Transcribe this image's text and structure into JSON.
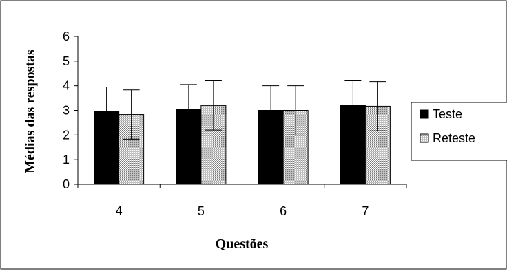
{
  "chart_data": {
    "type": "bar",
    "xlabel": "Questões",
    "ylabel": "Médias das respostas",
    "ylim": [
      0,
      6
    ],
    "y_ticks": [
      "0",
      "1",
      "2",
      "3",
      "4",
      "5",
      "6"
    ],
    "categories": [
      "4",
      "5",
      "6",
      "7"
    ],
    "grid": false,
    "legend_position": "right",
    "series": [
      {
        "name": "Teste",
        "values": [
          2.95,
          3.05,
          3.0,
          3.2
        ],
        "error_plus": [
          1.0,
          1.0,
          1.0,
          1.0
        ],
        "fill": "#000000",
        "pattern": "solid"
      },
      {
        "name": "Reteste",
        "values": [
          2.83,
          3.2,
          3.0,
          3.17
        ],
        "error_plus": [
          1.0,
          1.0,
          1.0,
          1.0
        ],
        "error_minus": [
          1.0,
          1.0,
          1.0,
          1.0
        ],
        "fill": "#ffffff",
        "pattern": "dotted-gray"
      }
    ]
  }
}
